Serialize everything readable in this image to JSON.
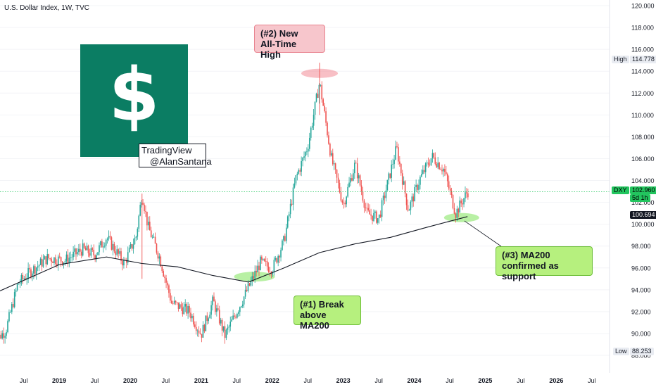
{
  "header": {
    "title": "U.S. Dollar Index, 1W, TVC"
  },
  "logo": {
    "symbol": "$",
    "credit_line1": "TradingView",
    "credit_line2": "@AlanSantana",
    "color": "#0b7d63"
  },
  "annotations": {
    "high_callout_line1": "(#2) New",
    "high_callout_line2": "All-Time High",
    "break_callout_line1": "(#1) Break",
    "break_callout_line2": "above MA200",
    "support_callout_line1": "(#3) MA200",
    "support_callout_line2": "confirmed as support"
  },
  "axis_tags": {
    "high_label": "High",
    "high_value": "114.778",
    "low_label": "Low",
    "low_value": "88.253",
    "symbol": "DXY",
    "last_price": "102.960",
    "countdown": "5d 1h",
    "ma_value": "100.694"
  },
  "colors": {
    "up": "#26a69a",
    "down": "#ef5350",
    "ma": "#131722",
    "price_line": "#22c55e"
  },
  "chart_data": {
    "type": "candlestick",
    "title": "U.S. Dollar Index, 1W, TVC",
    "yaxis_ticks": [
      "88.000",
      "90.000",
      "92.000",
      "94.000",
      "96.000",
      "98.000",
      "100.000",
      "102.000",
      "104.000",
      "106.000",
      "108.000",
      "110.000",
      "112.000",
      "114.000",
      "116.000",
      "118.000",
      "120.000"
    ],
    "xaxis_ticks": [
      "Jul",
      "2019",
      "Jul",
      "2020",
      "Jul",
      "2021",
      "Jul",
      "2022",
      "Jul",
      "2023",
      "Jul",
      "2024",
      "Jul",
      "2025",
      "Jul",
      "2026",
      "Jul"
    ],
    "ylim": [
      88,
      120
    ],
    "x_range": [
      "2018-03",
      "2026-10"
    ],
    "price_path": [
      [
        "2018-02",
        89.2
      ],
      [
        "2018-04",
        90.3
      ],
      [
        "2018-06",
        94.5
      ],
      [
        "2018-08",
        95.6
      ],
      [
        "2018-11",
        96.9
      ],
      [
        "2019-02",
        96.7
      ],
      [
        "2019-05",
        97.7
      ],
      [
        "2019-07",
        97.2
      ],
      [
        "2019-09",
        98.8
      ],
      [
        "2019-12",
        96.4
      ],
      [
        "2020-02",
        98.9
      ],
      [
        "2020-03",
        102.8
      ],
      [
        "2020-04",
        99.8
      ],
      [
        "2020-06",
        96.9
      ],
      [
        "2020-08",
        92.8
      ],
      [
        "2020-11",
        92.0
      ],
      [
        "2021-01",
        89.9
      ],
      [
        "2021-03",
        93.0
      ],
      [
        "2021-05",
        89.8
      ],
      [
        "2021-08",
        93.1
      ],
      [
        "2021-11",
        96.5
      ],
      [
        "2022-01",
        95.9
      ],
      [
        "2022-03",
        98.5
      ],
      [
        "2022-05",
        104.2
      ],
      [
        "2022-07",
        107.1
      ],
      [
        "2022-09",
        113.0
      ],
      [
        "2022-11",
        106.0
      ],
      [
        "2023-01",
        101.8
      ],
      [
        "2023-03",
        105.5
      ],
      [
        "2023-05",
        101.0
      ],
      [
        "2023-07",
        100.5
      ],
      [
        "2023-10",
        107.0
      ],
      [
        "2023-12",
        101.3
      ],
      [
        "2024-02",
        104.2
      ],
      [
        "2024-04",
        106.2
      ],
      [
        "2024-06",
        105.0
      ],
      [
        "2024-08",
        101.0
      ],
      [
        "2024-10",
        103.0
      ]
    ],
    "ma200_path": [
      [
        "2018-03",
        93.9
      ],
      [
        "2019-01",
        96.3
      ],
      [
        "2019-09",
        97.0
      ],
      [
        "2020-03",
        96.4
      ],
      [
        "2020-09",
        96.1
      ],
      [
        "2021-03",
        95.3
      ],
      [
        "2021-09",
        94.7
      ],
      [
        "2022-03",
        96.0
      ],
      [
        "2022-09",
        97.4
      ],
      [
        "2023-03",
        98.2
      ],
      [
        "2023-09",
        98.8
      ],
      [
        "2024-03",
        99.7
      ],
      [
        "2024-10",
        100.7
      ]
    ],
    "series": [
      {
        "name": "DXY"
      }
    ],
    "key_levels": {
      "high": 114.778,
      "low": 88.253,
      "last": 102.96,
      "ma200": 100.694
    },
    "annotations": [
      {
        "text": "(#1) Break above MA200",
        "at": [
          "2021-11",
          95.2
        ]
      },
      {
        "text": "(#2) New All-Time High",
        "at": [
          "2022-09",
          113.8
        ]
      },
      {
        "text": "(#3) MA200 confirmed as support",
        "at": [
          "2024-09",
          100.6
        ]
      }
    ]
  }
}
